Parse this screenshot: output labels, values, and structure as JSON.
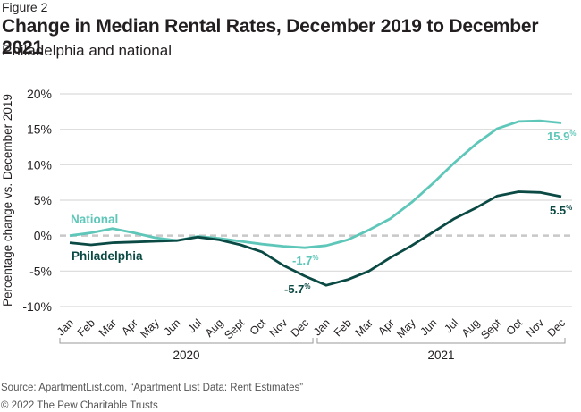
{
  "figure_label": "Figure 2",
  "title": "Change in Median Rental Rates, December 2019 to December 2021",
  "subtitle": "Philadelphia and national",
  "source": "Source: ApartmentList.com, “Apartment List Data: Rent Estimates”",
  "copyright": "© 2022 The Pew Charitable Trusts",
  "colors": {
    "national": "#5ec7b9",
    "philadelphia": "#0b4a44",
    "grid": "#d9d9d9",
    "zero_line": "#c8c8c8",
    "bracket": "#9a9a9a"
  },
  "chart_data": {
    "type": "line",
    "title": "Change in Median Rental Rates, December 2019 to December 2021",
    "subtitle": "Philadelphia and national",
    "xlabel": "",
    "ylabel": "Percentage change vs. December 2019",
    "ylim": [
      -10,
      20
    ],
    "yticks": [
      20,
      15,
      10,
      5,
      0,
      -5,
      -10
    ],
    "ytick_labels": [
      "20%",
      "15%",
      "10%",
      "5%",
      "0%",
      "-5%",
      "-10%"
    ],
    "grid": true,
    "zero_line": "dashed",
    "x": [
      "Jan",
      "Feb",
      "Mar",
      "Apr",
      "May",
      "Jun",
      "Jul",
      "Aug",
      "Sept",
      "Oct",
      "Nov",
      "Dec",
      "Jan",
      "Feb",
      "Mar",
      "Apr",
      "May",
      "Jun",
      "Jul",
      "Aug",
      "Sept",
      "Oct",
      "Nov",
      "Dec"
    ],
    "year_groups": [
      {
        "label": "2020",
        "start": 0,
        "end": 11
      },
      {
        "label": "2021",
        "start": 12,
        "end": 23
      }
    ],
    "series": [
      {
        "name": "National",
        "values": [
          0.0,
          0.4,
          1.0,
          0.4,
          -0.3,
          -0.7,
          -0.1,
          -0.4,
          -0.8,
          -1.2,
          -1.5,
          -1.7,
          -1.4,
          -0.6,
          0.8,
          2.4,
          4.7,
          7.4,
          10.3,
          12.9,
          15.1,
          16.1,
          16.2,
          15.9
        ],
        "end_label": "15.9%",
        "min_label": "-1.7%",
        "legend_label": "National"
      },
      {
        "name": "Philadelphia",
        "values": [
          -1.0,
          -1.3,
          -1.0,
          -0.9,
          -0.8,
          -0.7,
          -0.2,
          -0.6,
          -1.3,
          -2.3,
          -4.2,
          -5.7,
          -7.0,
          -6.2,
          -5.0,
          -3.1,
          -1.4,
          0.5,
          2.4,
          3.9,
          5.6,
          6.2,
          6.1,
          5.5
        ],
        "end_label": "5.5%",
        "min_label": "-5.7%",
        "legend_label": "Philadelphia"
      }
    ]
  }
}
